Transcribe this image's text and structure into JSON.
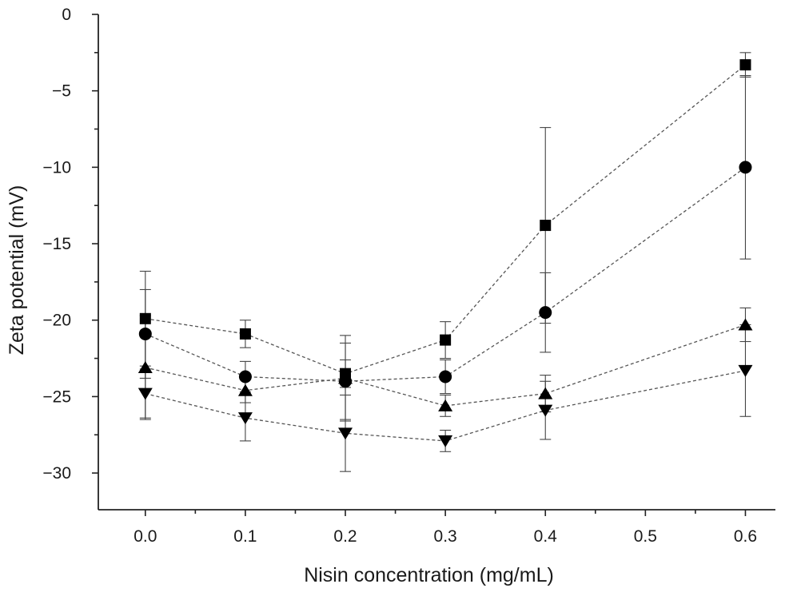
{
  "chart_data": {
    "type": "line",
    "title": "",
    "xlabel": "Nisin concentration (mg/mL)",
    "ylabel": "Zeta potential (mV)",
    "xlim": [
      -0.047,
      0.63
    ],
    "ylim": [
      -32.4,
      0
    ],
    "x_ticks": [
      0.0,
      0.1,
      0.2,
      0.3,
      0.4,
      0.5,
      0.6
    ],
    "x_tick_labels": [
      "0.0",
      "0.1",
      "0.2",
      "0.3",
      "0.4",
      "0.5",
      "0.6"
    ],
    "y_ticks": [
      0,
      -5,
      -10,
      -15,
      -20,
      -25,
      -30
    ],
    "y_tick_labels": [
      "0",
      "−5",
      "−10",
      "−15",
      "−20",
      "−25",
      "−30"
    ],
    "grid": false,
    "legend": "none",
    "x": [
      0.0,
      0.1,
      0.2,
      0.3,
      0.4,
      0.6
    ],
    "series": [
      {
        "name": "square",
        "marker": "square",
        "values": [
          -19.9,
          -20.9,
          -23.5,
          -21.3,
          -13.8,
          -3.3
        ],
        "errors": [
          3.1,
          0.9,
          0.9,
          1.2,
          6.4,
          0.8
        ]
      },
      {
        "name": "circle",
        "marker": "circle",
        "values": [
          -20.9,
          -23.7,
          -24.0,
          -23.7,
          -19.5,
          -10.0
        ],
        "errors": [
          2.9,
          1.0,
          2.5,
          1.1,
          2.6,
          6.0
        ]
      },
      {
        "name": "triangle-up",
        "marker": "triangle-up",
        "values": [
          -23.1,
          -24.6,
          -23.8,
          -25.6,
          -24.8,
          -20.3
        ],
        "errors": [
          3.4,
          0.8,
          2.8,
          0.7,
          1.2,
          1.1
        ]
      },
      {
        "name": "triangle-down",
        "marker": "triangle-down",
        "values": [
          -24.8,
          -26.4,
          -27.4,
          -27.9,
          -25.9,
          -23.3
        ],
        "errors": [
          1.6,
          1.5,
          2.5,
          0.7,
          1.9,
          3.0
        ]
      }
    ]
  }
}
